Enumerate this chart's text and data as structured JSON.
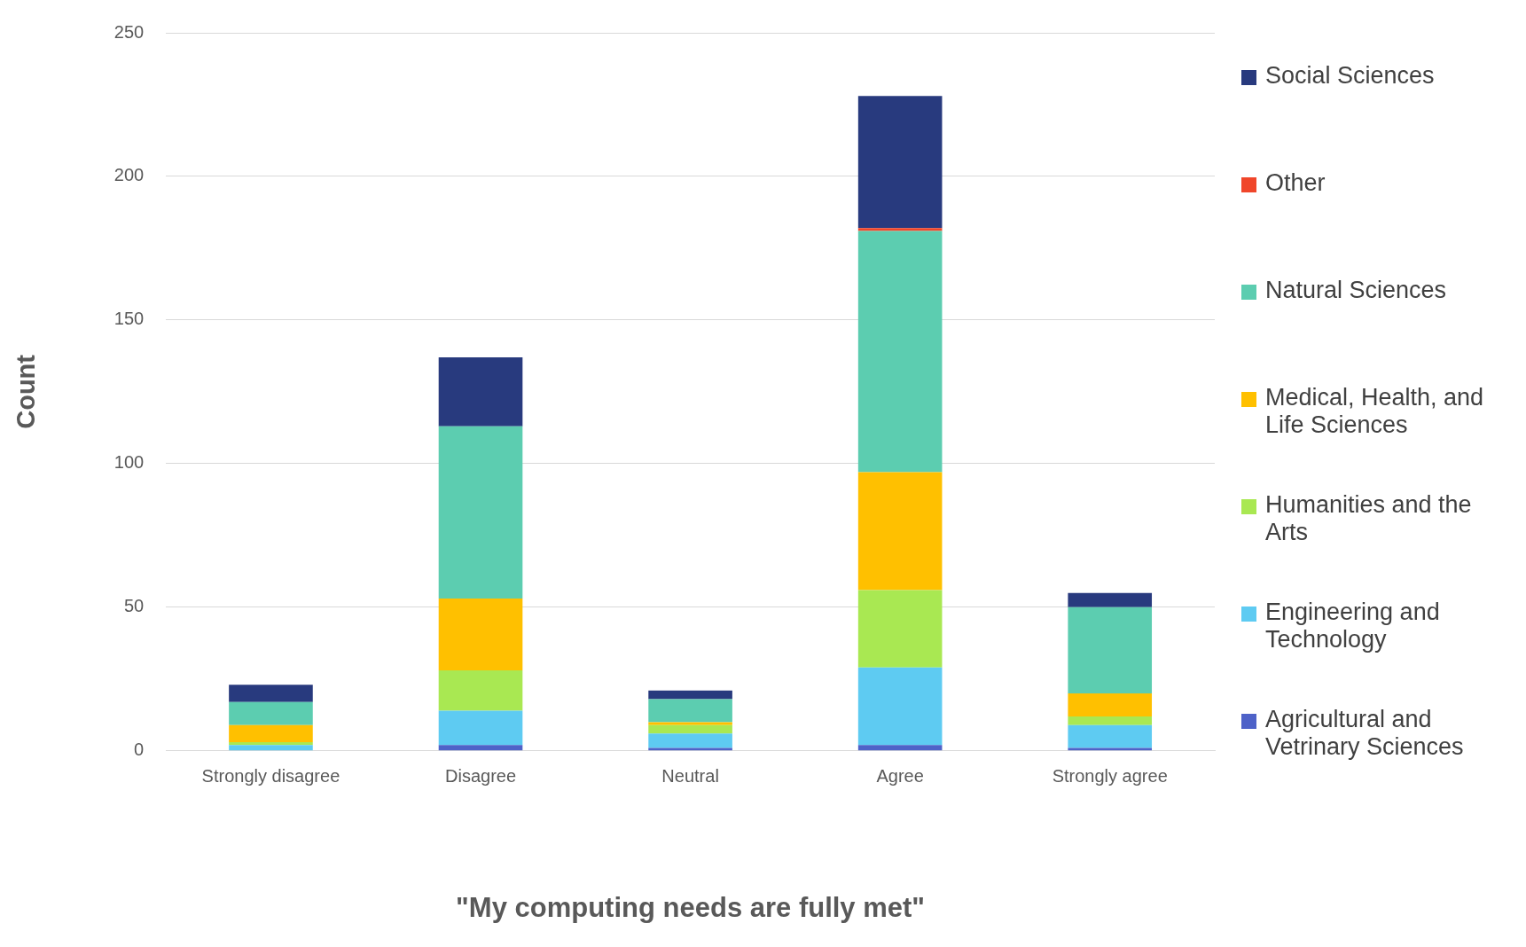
{
  "chart_data": {
    "type": "bar",
    "stacked": true,
    "xlabel": "\"My computing needs are fully met\"",
    "ylabel": "Count",
    "categories": [
      "Strongly disagree",
      "Disagree",
      "Neutral",
      "Agree",
      "Strongly agree"
    ],
    "series": [
      {
        "name": "Agricultural and Vetrinary Sciences",
        "color": "#4e62c8",
        "values": [
          0,
          2,
          1,
          2,
          1
        ]
      },
      {
        "name": "Engineering and Technology",
        "color": "#5ecbf2",
        "values": [
          2,
          12,
          5,
          27,
          8
        ]
      },
      {
        "name": "Humanities and the Arts",
        "color": "#a9e852",
        "values": [
          1,
          14,
          3,
          27,
          3
        ]
      },
      {
        "name": "Medical, Health, and Life Sciences",
        "color": "#ffc000",
        "values": [
          6,
          25,
          1,
          41,
          8
        ]
      },
      {
        "name": "Natural Sciences",
        "color": "#5ccdb0",
        "values": [
          8,
          60,
          8,
          84,
          30
        ]
      },
      {
        "name": "Other",
        "color": "#f0462a",
        "values": [
          0,
          0,
          0,
          1,
          0
        ]
      },
      {
        "name": "Social Sciences",
        "color": "#283a7e",
        "values": [
          6,
          24,
          3,
          46,
          5
        ]
      }
    ],
    "ylim": [
      0,
      250
    ],
    "yticks": [
      0,
      50,
      100,
      150,
      200,
      250
    ],
    "grid": "y",
    "legend": "right"
  }
}
